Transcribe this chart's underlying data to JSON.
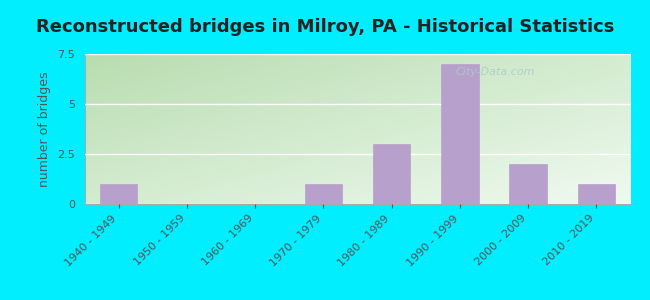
{
  "title": "Reconstructed bridges in Milroy, PA - Historical Statistics",
  "ylabel": "number of bridges",
  "categories": [
    "1940 - 1949",
    "1950 - 1959",
    "1960 - 1969",
    "1970 - 1979",
    "1980 - 1989",
    "1990 - 1999",
    "2000 - 2009",
    "2010 - 2019"
  ],
  "values": [
    1,
    0,
    0,
    1,
    3,
    7,
    2,
    1
  ],
  "bar_color": "#b8a0cc",
  "bar_edgecolor": "#b8a0cc",
  "ylim": [
    0,
    7.5
  ],
  "yticks": [
    0,
    2.5,
    5,
    7.5
  ],
  "background_color": "#00eeff",
  "grad_top_left": "#b8ddb0",
  "grad_bottom_right": "#f0faf0",
  "title_fontsize": 13,
  "axis_label_fontsize": 9,
  "tick_fontsize": 8,
  "title_color": "#222222",
  "tick_color": "#555555",
  "watermark": "City-Data.com",
  "watermark_color": "#aacccc",
  "grid_color": "#ffffff"
}
